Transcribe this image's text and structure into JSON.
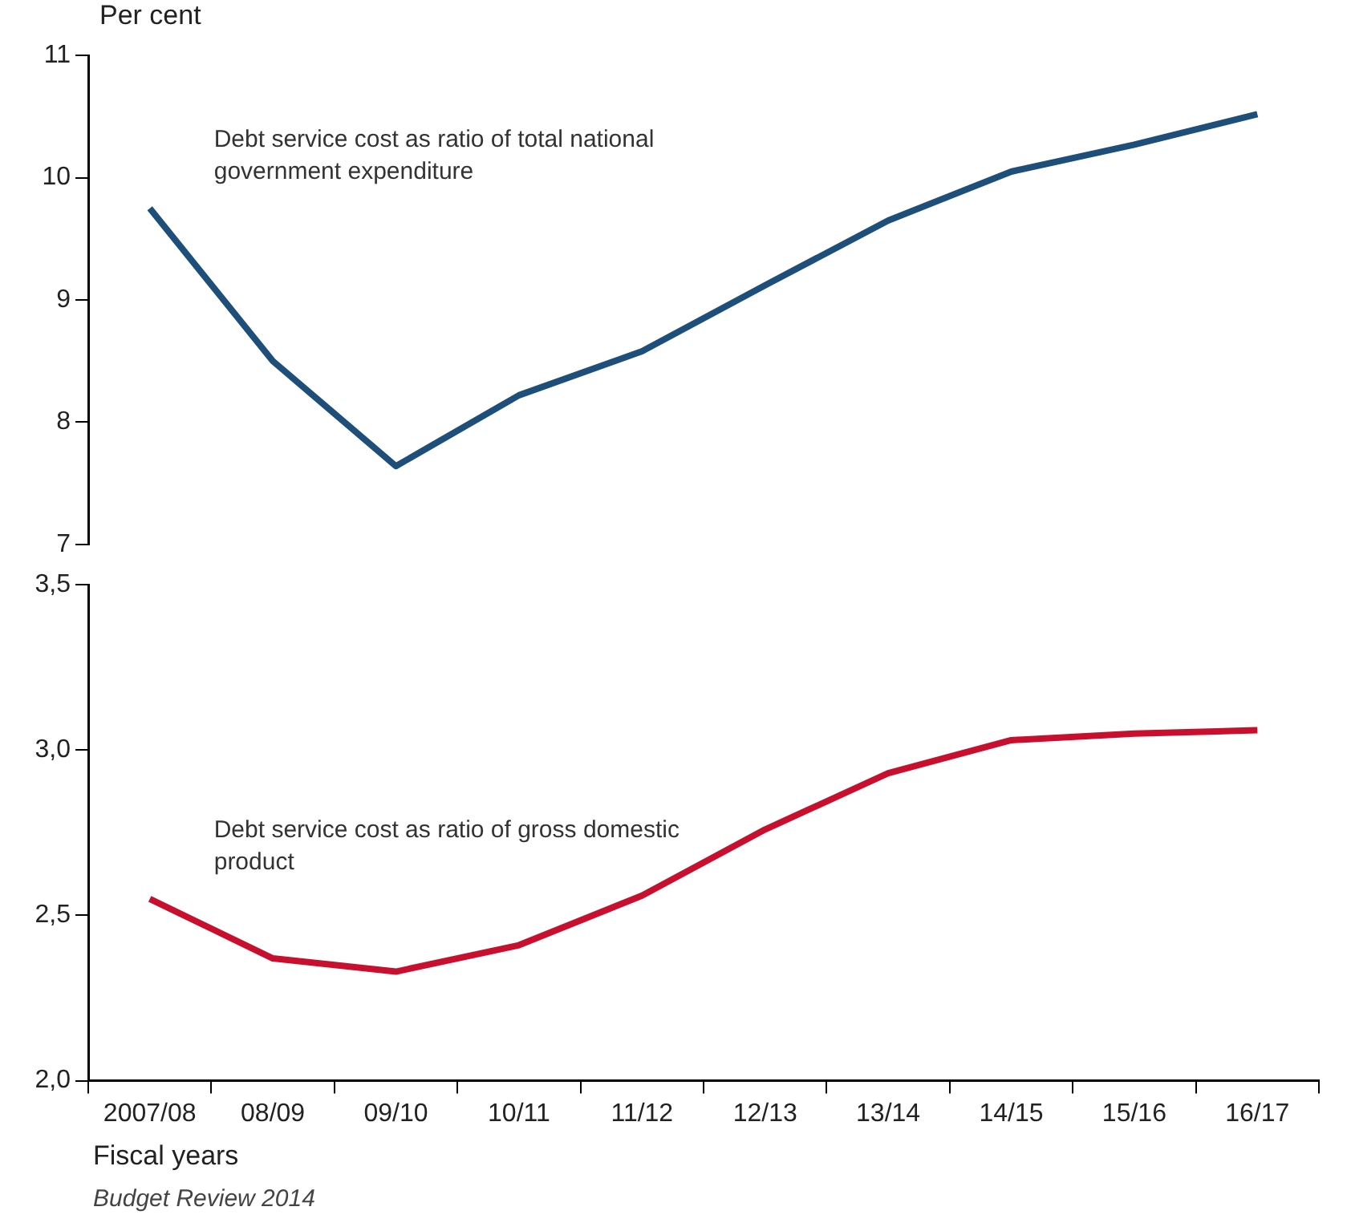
{
  "chart_data": [
    {
      "type": "line",
      "ylabel": "Per cent",
      "categories": [
        null,
        null,
        null,
        null,
        null,
        null,
        null,
        null,
        null,
        null
      ],
      "tick_labels": "y",
      "marker": "none",
      "ylim": [
        7,
        11
      ],
      "yticks": [
        7,
        8,
        9,
        10,
        11
      ],
      "series": [
        {
          "name": "Debt service cost as ratio of total national government expenditure",
          "color": "#1d4f7a",
          "values": [
            9.75,
            8.5,
            7.64,
            8.22,
            8.58,
            9.12,
            9.65,
            10.05,
            10.27,
            10.52
          ]
        }
      ]
    },
    {
      "type": "line",
      "xlabel": "Fiscal years",
      "categories": [
        "2007/08",
        "08/09",
        "09/10",
        "10/11",
        "11/12",
        "12/13",
        "13/14",
        "14/15",
        "15/16",
        "16/17"
      ],
      "marker": "none",
      "ylim": [
        2.0,
        3.5
      ],
      "yticks": [
        {
          "value": 2.0,
          "label": "2,0"
        },
        {
          "value": 2.5,
          "label": "2,5"
        },
        {
          "value": 3.0,
          "label": "3,0"
        },
        {
          "value": 3.5,
          "label": "3,5"
        }
      ],
      "series": [
        {
          "name": "Debt service cost as ratio of gross domestic product",
          "color": "#c8102e",
          "values": [
            2.55,
            2.37,
            2.33,
            2.41,
            2.56,
            2.76,
            2.93,
            3.03,
            3.05,
            3.06
          ]
        }
      ],
      "annotations": [
        "Budget Review 2014"
      ]
    }
  ]
}
